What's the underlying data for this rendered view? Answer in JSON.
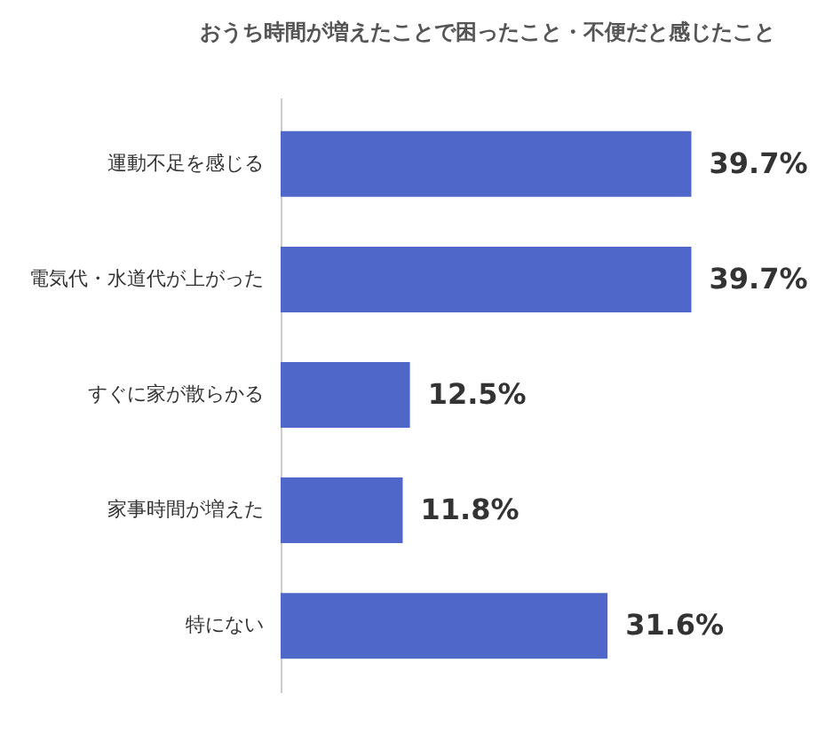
{
  "chart_data": {
    "type": "bar",
    "orientation": "horizontal",
    "title": "おうち時間が増えたことで困ったこと・不便だと感じたこと",
    "categories": [
      "運動不足を感じる",
      "電気代・水道代が上がった",
      "すぐに家が散らかる",
      "家事時間が増えた",
      "特にない"
    ],
    "values": [
      39.7,
      39.7,
      12.5,
      11.8,
      31.6
    ],
    "value_labels": [
      "39.7%",
      "39.7%",
      "12.5%",
      "11.8%",
      "31.6%"
    ],
    "color": "#4f67c8",
    "grid": false,
    "tick_labels": "y"
  }
}
